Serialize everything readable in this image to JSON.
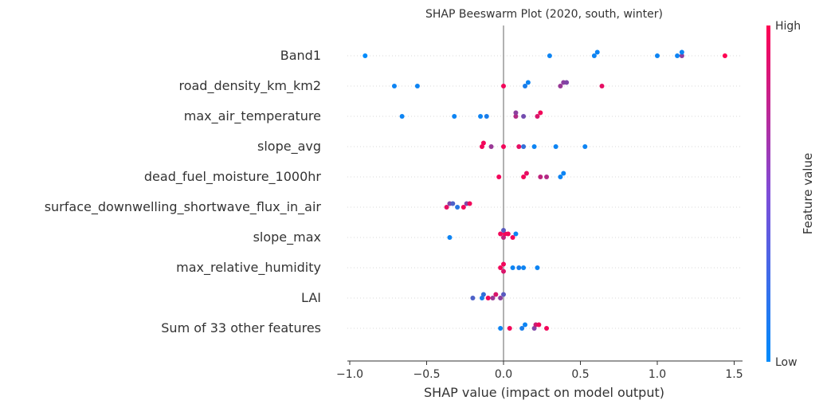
{
  "chart_data": {
    "type": "scatter",
    "title": "SHAP Beeswarm Plot (2020, south, winter)",
    "xlabel": "SHAP value (impact on model output)",
    "xlim": [
      -1.0,
      1.55
    ],
    "xticks": [
      -1.0,
      -0.5,
      0.0,
      0.5,
      1.0,
      1.5
    ],
    "xtick_labels": [
      "−1.0",
      "−0.5",
      "0.0",
      "0.5",
      "1.0",
      "1.5"
    ],
    "colorbar": {
      "label": "Feature value",
      "high_label": "High",
      "low_label": "Low",
      "low_color": "#008bfb",
      "high_color": "#ff0052"
    },
    "grid": "dotted horizontal per feature",
    "zero_line": true,
    "features": [
      {
        "name": "Band1",
        "points": [
          [
            -0.9,
            0.0
          ],
          [
            0.3,
            0.05
          ],
          [
            0.59,
            0.05
          ],
          [
            0.61,
            0.05
          ],
          [
            1.0,
            0.05
          ],
          [
            1.13,
            0.05
          ],
          [
            1.16,
            0.55
          ],
          [
            1.16,
            0.05
          ],
          [
            1.44,
            1.0
          ]
        ]
      },
      {
        "name": "road_density_km_km2",
        "points": [
          [
            -0.71,
            0.05
          ],
          [
            -0.56,
            0.05
          ],
          [
            0.0,
            0.95
          ],
          [
            0.14,
            0.1
          ],
          [
            0.16,
            0.05
          ],
          [
            0.37,
            0.6
          ],
          [
            0.39,
            0.55
          ],
          [
            0.41,
            0.5
          ],
          [
            0.64,
            0.9
          ]
        ]
      },
      {
        "name": "max_air_temperature",
        "points": [
          [
            -0.66,
            0.05
          ],
          [
            -0.32,
            0.05
          ],
          [
            -0.15,
            0.05
          ],
          [
            -0.11,
            0.1
          ],
          [
            0.08,
            0.7
          ],
          [
            0.08,
            0.55
          ],
          [
            0.13,
            0.45
          ],
          [
            0.22,
            0.85
          ],
          [
            0.24,
            0.95
          ]
        ]
      },
      {
        "name": "slope_avg",
        "points": [
          [
            -0.14,
            0.95
          ],
          [
            -0.13,
            0.95
          ],
          [
            -0.08,
            0.6
          ],
          [
            0.0,
            0.95
          ],
          [
            0.1,
            0.9
          ],
          [
            0.13,
            0.2
          ],
          [
            0.2,
            0.05
          ],
          [
            0.34,
            0.05
          ],
          [
            0.53,
            0.05
          ]
        ]
      },
      {
        "name": "dead_fuel_moisture_1000hr",
        "points": [
          [
            -0.03,
            0.95
          ],
          [
            0.13,
            0.95
          ],
          [
            0.15,
            0.9
          ],
          [
            0.24,
            0.75
          ],
          [
            0.28,
            0.7
          ],
          [
            0.37,
            0.05
          ],
          [
            0.39,
            0.05
          ]
        ]
      },
      {
        "name": "surface_downwelling_shortwave_flux_in_air",
        "points": [
          [
            -0.37,
            0.9
          ],
          [
            -0.35,
            0.5
          ],
          [
            -0.33,
            0.3
          ],
          [
            -0.3,
            0.15
          ],
          [
            -0.26,
            0.95
          ],
          [
            -0.24,
            0.5
          ],
          [
            -0.22,
            0.95
          ]
        ]
      },
      {
        "name": "slope_max",
        "points": [
          [
            -0.35,
            0.05
          ],
          [
            0.0,
            0.75
          ],
          [
            -0.02,
            0.95
          ],
          [
            0.01,
            0.95
          ],
          [
            0.03,
            0.95
          ],
          [
            0.06,
            0.95
          ],
          [
            0.08,
            0.05
          ],
          [
            0.0,
            0.35
          ]
        ]
      },
      {
        "name": "max_relative_humidity",
        "points": [
          [
            -0.02,
            0.95
          ],
          [
            0.0,
            0.95
          ],
          [
            0.0,
            0.85
          ],
          [
            0.06,
            0.05
          ],
          [
            0.1,
            0.1
          ],
          [
            0.13,
            0.05
          ],
          [
            0.22,
            0.05
          ]
        ]
      },
      {
        "name": "LAI",
        "points": [
          [
            -0.2,
            0.3
          ],
          [
            -0.14,
            0.1
          ],
          [
            -0.13,
            0.2
          ],
          [
            -0.1,
            0.95
          ],
          [
            -0.07,
            0.6
          ],
          [
            -0.05,
            0.85
          ],
          [
            -0.02,
            0.55
          ],
          [
            0.0,
            0.35
          ]
        ]
      },
      {
        "name": "Sum of 33 other features",
        "points": [
          [
            -0.02,
            0.05
          ],
          [
            0.04,
            0.95
          ],
          [
            0.12,
            0.1
          ],
          [
            0.14,
            0.05
          ],
          [
            0.2,
            0.5
          ],
          [
            0.21,
            0.8
          ],
          [
            0.23,
            0.95
          ],
          [
            0.28,
            0.95
          ]
        ]
      }
    ]
  }
}
